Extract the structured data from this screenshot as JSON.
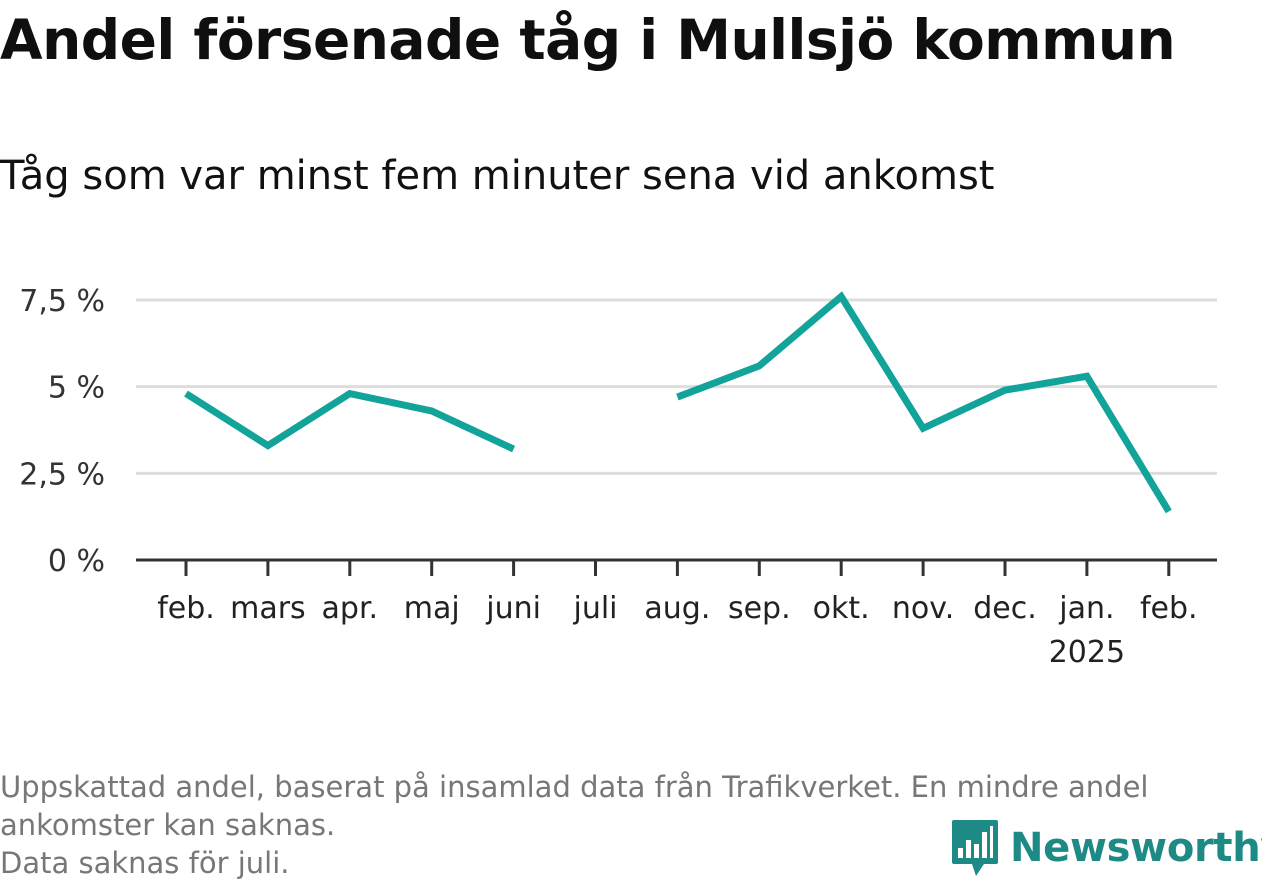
{
  "title": "Andel försenade tåg i Mullsjö kommun",
  "subtitle": "Tåg som var minst fem minuter sena vid ankomst",
  "note_lines": [
    "Uppskattad andel, baserat på insamlad data från Trafikverket. En mindre andel",
    "ankomster kan saknas.",
    "Data saknas för juli."
  ],
  "logo": {
    "text": "Newsworthy",
    "icon": "newsworthy-logo-icon"
  },
  "colors": {
    "line": "#12a39a",
    "grid": "#dddddd",
    "axis": "#333333"
  },
  "chart_data": {
    "type": "line",
    "categories": [
      "feb.",
      "mars",
      "apr.",
      "maj",
      "juni",
      "juli",
      "aug.",
      "sep.",
      "okt.",
      "nov.",
      "dec.",
      "jan.",
      "feb."
    ],
    "category_sublabels": [
      "",
      "",
      "",
      "",
      "",
      "",
      "",
      "",
      "",
      "",
      "",
      "2025",
      ""
    ],
    "series": [
      {
        "values": [
          4.8,
          3.3,
          4.8,
          4.3,
          3.2,
          null,
          4.7,
          5.6,
          7.6,
          3.8,
          4.9,
          5.3,
          1.4
        ]
      }
    ],
    "yticks": [
      0,
      2.5,
      5,
      7.5
    ],
    "ytick_labels": [
      "0 %",
      "2,5 %",
      "5 %",
      "7,5 %"
    ],
    "ylim": [
      0,
      7.5
    ],
    "grid": true,
    "xlabel": "",
    "ylabel": ""
  }
}
